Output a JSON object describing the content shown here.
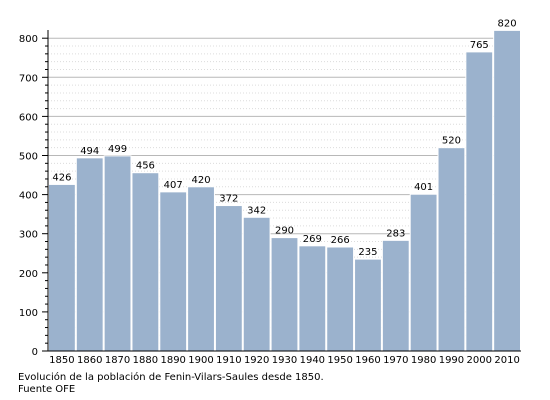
{
  "chart_data": {
    "type": "bar",
    "categories": [
      "1850",
      "1860",
      "1870",
      "1880",
      "1890",
      "1900",
      "1910",
      "1920",
      "1930",
      "1940",
      "1950",
      "1960",
      "1970",
      "1980",
      "1990",
      "2000",
      "2010"
    ],
    "values": [
      426,
      494,
      499,
      456,
      407,
      420,
      372,
      342,
      290,
      269,
      266,
      235,
      283,
      401,
      520,
      765,
      820
    ],
    "ylim": [
      0,
      820
    ],
    "yticks": [
      0,
      100,
      200,
      300,
      400,
      500,
      600,
      700,
      800
    ],
    "grid": true,
    "colors": {
      "bar": "#9bb2cd",
      "bar_edge": "#ffffff",
      "grid": "#b8b8b8",
      "axis": "#000000"
    }
  },
  "caption": {
    "line1": "Evolución de la población de Fenin-Vilars-Saules desde 1850.",
    "line2": "Fuente OFE"
  }
}
